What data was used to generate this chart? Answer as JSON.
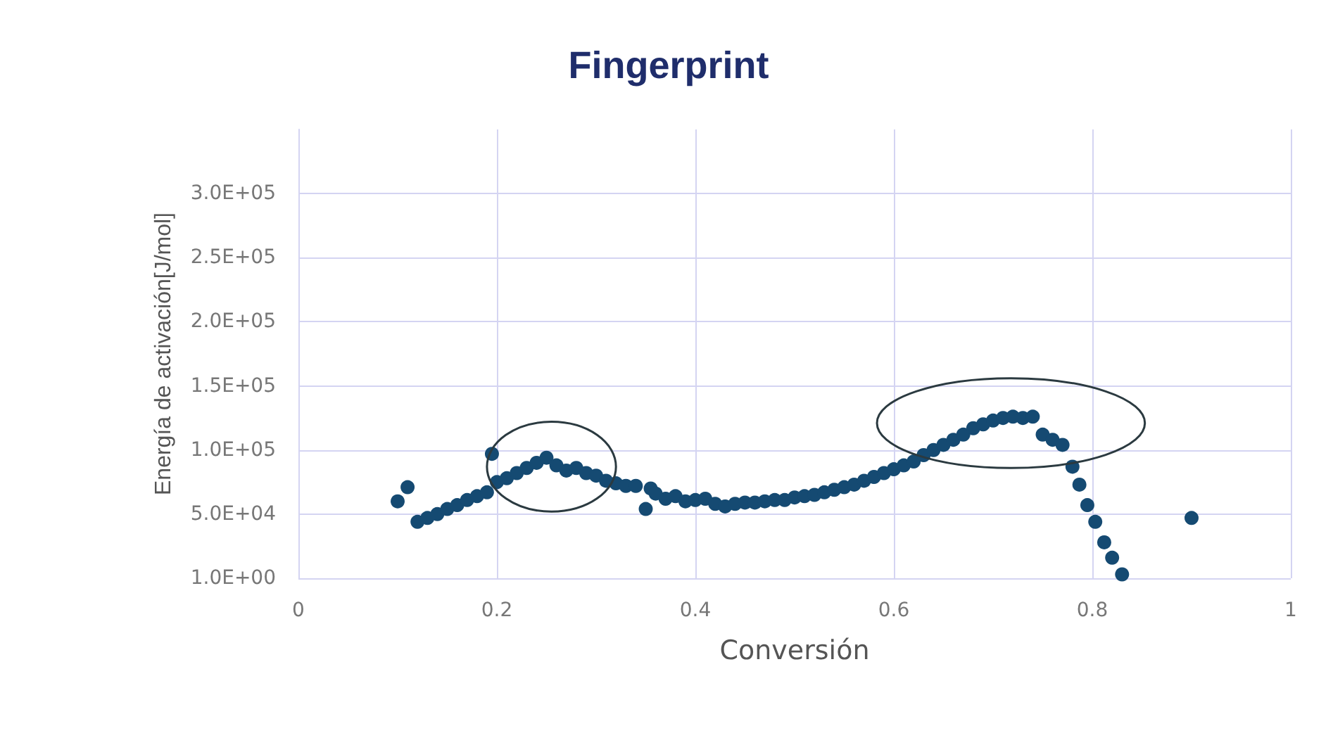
{
  "chart_data": {
    "type": "scatter",
    "title": "Fingerprint",
    "xlabel": "Conversión",
    "ylabel": "Energía de activación[J/mol]",
    "x": [
      0.1,
      0.11,
      0.12,
      0.13,
      0.14,
      0.15,
      0.16,
      0.17,
      0.18,
      0.19,
      0.195,
      0.2,
      0.21,
      0.22,
      0.23,
      0.24,
      0.25,
      0.26,
      0.27,
      0.28,
      0.29,
      0.3,
      0.31,
      0.32,
      0.33,
      0.34,
      0.35,
      0.355,
      0.36,
      0.37,
      0.38,
      0.39,
      0.4,
      0.41,
      0.42,
      0.43,
      0.44,
      0.45,
      0.46,
      0.47,
      0.48,
      0.49,
      0.5,
      0.51,
      0.52,
      0.53,
      0.54,
      0.55,
      0.56,
      0.57,
      0.58,
      0.59,
      0.6,
      0.61,
      0.62,
      0.63,
      0.64,
      0.65,
      0.66,
      0.67,
      0.68,
      0.69,
      0.7,
      0.71,
      0.72,
      0.73,
      0.74,
      0.75,
      0.76,
      0.77,
      0.78,
      0.787,
      0.795,
      0.803,
      0.812,
      0.82,
      0.83,
      0.9
    ],
    "series": [
      {
        "color": "#154a72",
        "values": [
          60000,
          71000,
          44000,
          47000,
          50000,
          54000,
          57000,
          61000,
          64000,
          67000,
          97000,
          75000,
          78000,
          82000,
          86000,
          90000,
          94000,
          88000,
          84000,
          86000,
          82000,
          80000,
          76000,
          74000,
          72000,
          72000,
          54000,
          70000,
          66000,
          62000,
          64000,
          60000,
          61000,
          62000,
          58000,
          56000,
          58000,
          59000,
          59000,
          60000,
          61000,
          61000,
          63000,
          64000,
          65000,
          67000,
          69000,
          71000,
          73000,
          76000,
          79000,
          82000,
          85000,
          88000,
          91000,
          96000,
          100000,
          104000,
          108000,
          112000,
          117000,
          120000,
          123000,
          125000,
          126000,
          125000,
          126000,
          112000,
          108000,
          104000,
          87000,
          73000,
          57000,
          44000,
          28000,
          16000,
          3000,
          47000
        ]
      }
    ],
    "xlim": [
      0,
      1
    ],
    "xticks": [
      0,
      0.2,
      0.4,
      0.6,
      0.8,
      1
    ],
    "ylim": [
      1,
      350000
    ],
    "yticks": [
      {
        "value": 1,
        "label": "1.0E+00"
      },
      {
        "value": 50000,
        "label": "5.0E+04"
      },
      {
        "value": 100000,
        "label": "1.0E+05"
      },
      {
        "value": 150000,
        "label": "1.5E+05"
      },
      {
        "value": 200000,
        "label": "2.0E+05"
      },
      {
        "value": 250000,
        "label": "2.5E+05"
      },
      {
        "value": 300000,
        "label": "3.0E+05"
      }
    ],
    "grid": true,
    "marker": "circle"
  }
}
